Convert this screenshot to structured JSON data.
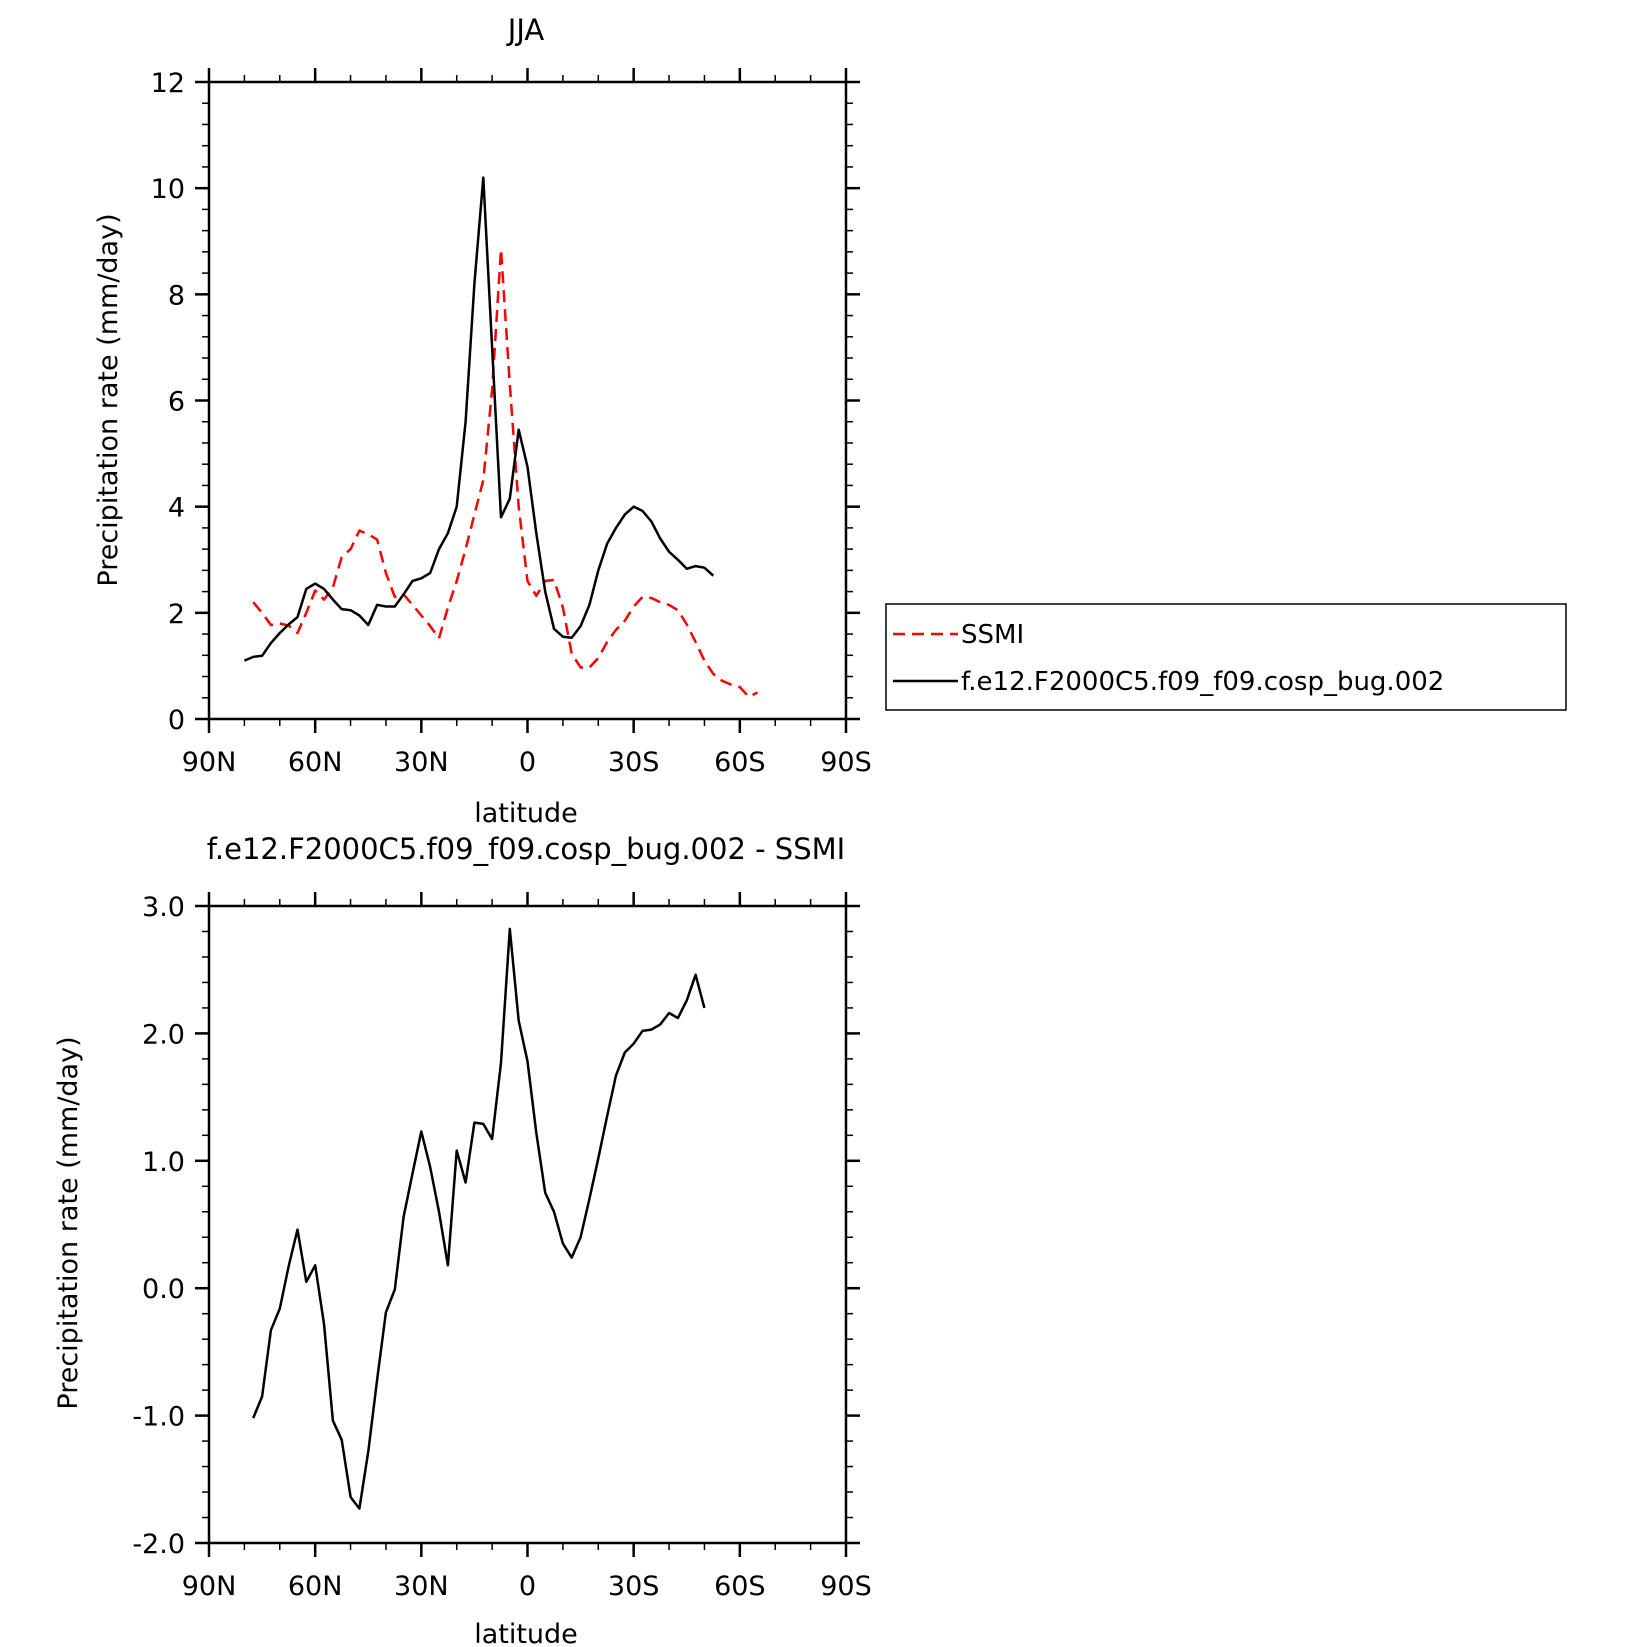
{
  "chart_data": [
    {
      "type": "line",
      "title": "JJA",
      "xlabel": "latitude",
      "ylabel": "Precipitation rate (mm/day)",
      "xlim": [
        90,
        -90
      ],
      "ylim": [
        0,
        12
      ],
      "x_ticks": [
        90,
        60,
        30,
        0,
        -30,
        -60,
        -90
      ],
      "x_tick_labels": [
        "90N",
        "60N",
        "30N",
        "0",
        "30S",
        "60S",
        "90S"
      ],
      "y_ticks": [
        0,
        2,
        4,
        6,
        8,
        10,
        12
      ],
      "y_tick_labels": [
        "0",
        "2",
        "4",
        "6",
        "8",
        "10",
        "12"
      ],
      "legend_position": "right",
      "series": [
        {
          "name": "SSMI",
          "color": "#ff0000",
          "dash": true,
          "points": [
            [
              77.5,
              2.2
            ],
            [
              75,
              2.0
            ],
            [
              72.5,
              1.77
            ],
            [
              70,
              1.8
            ],
            [
              67.5,
              1.76
            ],
            [
              65,
              1.62
            ],
            [
              62.5,
              2.0
            ],
            [
              60,
              2.42
            ],
            [
              57.5,
              2.25
            ],
            [
              55,
              2.48
            ],
            [
              52.5,
              3.05
            ],
            [
              50,
              3.2
            ],
            [
              47.5,
              3.55
            ],
            [
              45,
              3.48
            ],
            [
              42.5,
              3.38
            ],
            [
              40,
              2.75
            ],
            [
              37.5,
              2.3
            ],
            [
              35,
              2.35
            ],
            [
              32.5,
              2.15
            ],
            [
              30,
              1.95
            ],
            [
              27.5,
              1.75
            ],
            [
              25,
              1.52
            ],
            [
              22.5,
              2.1
            ],
            [
              20,
              2.6
            ],
            [
              17.5,
              3.2
            ],
            [
              15,
              3.85
            ],
            [
              12.5,
              4.5
            ],
            [
              10,
              6.2
            ],
            [
              7.5,
              8.85
            ],
            [
              5,
              6.3
            ],
            [
              2.5,
              4.0
            ],
            [
              0,
              2.6
            ],
            [
              -2.5,
              2.32
            ],
            [
              -5,
              2.6
            ],
            [
              -7.5,
              2.62
            ],
            [
              -10,
              2.1
            ],
            [
              -12.5,
              1.23
            ],
            [
              -15,
              0.97
            ],
            [
              -17.5,
              0.97
            ],
            [
              -20,
              1.15
            ],
            [
              -22.5,
              1.45
            ],
            [
              -25,
              1.68
            ],
            [
              -27.5,
              1.85
            ],
            [
              -30,
              2.12
            ],
            [
              -32.5,
              2.3
            ],
            [
              -35,
              2.28
            ],
            [
              -37.5,
              2.2
            ],
            [
              -40,
              2.15
            ],
            [
              -42.5,
              2.05
            ],
            [
              -45,
              1.78
            ],
            [
              -47.5,
              1.45
            ],
            [
              -50,
              1.1
            ],
            [
              -52.5,
              0.85
            ],
            [
              -55,
              0.72
            ],
            [
              -57.5,
              0.65
            ],
            [
              -60,
              0.6
            ],
            [
              -62.5,
              0.42
            ],
            [
              -65,
              0.5
            ]
          ]
        },
        {
          "name": "f.e12.F2000C5.f09_f09.cosp_bug.002",
          "color": "#000000",
          "dash": false,
          "points": [
            [
              80,
              1.1
            ],
            [
              77.5,
              1.17
            ],
            [
              75,
              1.19
            ],
            [
              72.5,
              1.43
            ],
            [
              70,
              1.62
            ],
            [
              67.5,
              1.78
            ],
            [
              65,
              1.92
            ],
            [
              62.5,
              2.45
            ],
            [
              60,
              2.55
            ],
            [
              57.5,
              2.45
            ],
            [
              55,
              2.25
            ],
            [
              52.5,
              2.07
            ],
            [
              50,
              2.05
            ],
            [
              47.5,
              1.95
            ],
            [
              45,
              1.77
            ],
            [
              42.5,
              2.15
            ],
            [
              40,
              2.12
            ],
            [
              37.5,
              2.12
            ],
            [
              35,
              2.35
            ],
            [
              32.5,
              2.6
            ],
            [
              30,
              2.65
            ],
            [
              27.5,
              2.75
            ],
            [
              25,
              3.2
            ],
            [
              22.5,
              3.5
            ],
            [
              20,
              4.0
            ],
            [
              17.5,
              5.6
            ],
            [
              15,
              8.2
            ],
            [
              12.5,
              10.2
            ],
            [
              10,
              7.0
            ],
            [
              7.5,
              3.8
            ],
            [
              5,
              4.15
            ],
            [
              2.5,
              5.45
            ],
            [
              0,
              4.75
            ],
            [
              -2.5,
              3.5
            ],
            [
              -5,
              2.4
            ],
            [
              -7.5,
              1.7
            ],
            [
              -10,
              1.55
            ],
            [
              -12.5,
              1.53
            ],
            [
              -15,
              1.75
            ],
            [
              -17.5,
              2.15
            ],
            [
              -20,
              2.8
            ],
            [
              -22.5,
              3.3
            ],
            [
              -25,
              3.6
            ],
            [
              -27.5,
              3.85
            ],
            [
              -30,
              4.0
            ],
            [
              -32.5,
              3.92
            ],
            [
              -35,
              3.72
            ],
            [
              -37.5,
              3.4
            ],
            [
              -40,
              3.15
            ],
            [
              -42.5,
              3.0
            ],
            [
              -45,
              2.83
            ],
            [
              -47.5,
              2.88
            ],
            [
              -50,
              2.85
            ],
            [
              -52.5,
              2.7
            ]
          ]
        }
      ]
    },
    {
      "type": "line",
      "title": "f.e12.F2000C5.f09_f09.cosp_bug.002 - SSMI",
      "xlabel": "latitude",
      "ylabel": "Precipitation rate (mm/day)",
      "xlim": [
        90,
        -90
      ],
      "ylim": [
        -2,
        3
      ],
      "x_ticks": [
        90,
        60,
        30,
        0,
        -30,
        -60,
        -90
      ],
      "x_tick_labels": [
        "90N",
        "60N",
        "30N",
        "0",
        "30S",
        "60S",
        "90S"
      ],
      "y_ticks": [
        -2,
        -1,
        0,
        1,
        2,
        3
      ],
      "y_tick_labels": [
        "-2.0",
        "-1.0",
        "0.0",
        "1.0",
        "2.0",
        "3.0"
      ],
      "series": [
        {
          "color": "#000000",
          "dash": false,
          "points": [
            [
              77.5,
              -1.02
            ],
            [
              75,
              -0.85
            ],
            [
              72.5,
              -0.33
            ],
            [
              70,
              -0.16
            ],
            [
              67.5,
              0.17
            ],
            [
              65,
              0.46
            ],
            [
              62.5,
              0.05
            ],
            [
              60,
              0.18
            ],
            [
              57.5,
              -0.28
            ],
            [
              55,
              -1.04
            ],
            [
              52.5,
              -1.19
            ],
            [
              50,
              -1.64
            ],
            [
              47.5,
              -1.73
            ],
            [
              45,
              -1.28
            ],
            [
              42.5,
              -0.72
            ],
            [
              40,
              -0.19
            ],
            [
              37.5,
              -0.01
            ],
            [
              35,
              0.56
            ],
            [
              32.5,
              0.9
            ],
            [
              30,
              1.23
            ],
            [
              27.5,
              0.95
            ],
            [
              25,
              0.6
            ],
            [
              22.5,
              0.18
            ],
            [
              20,
              1.08
            ],
            [
              17.5,
              0.83
            ],
            [
              15,
              1.3
            ],
            [
              12.5,
              1.29
            ],
            [
              10,
              1.17
            ],
            [
              7.5,
              1.77
            ],
            [
              5,
              2.82
            ],
            [
              2.5,
              2.1
            ],
            [
              0,
              1.78
            ],
            [
              -2.5,
              1.22
            ],
            [
              -5,
              0.75
            ],
            [
              -7.5,
              0.6
            ],
            [
              -10,
              0.35
            ],
            [
              -12.5,
              0.24
            ],
            [
              -15,
              0.4
            ],
            [
              -17.5,
              0.7
            ],
            [
              -20,
              1.02
            ],
            [
              -22.5,
              1.35
            ],
            [
              -25,
              1.67
            ],
            [
              -27.5,
              1.85
            ],
            [
              -30,
              1.92
            ],
            [
              -32.5,
              2.02
            ],
            [
              -35,
              2.03
            ],
            [
              -37.5,
              2.07
            ],
            [
              -40,
              2.16
            ],
            [
              -42.5,
              2.12
            ],
            [
              -45,
              2.26
            ],
            [
              -47.5,
              2.46
            ],
            [
              -50,
              2.2
            ]
          ]
        }
      ]
    }
  ]
}
